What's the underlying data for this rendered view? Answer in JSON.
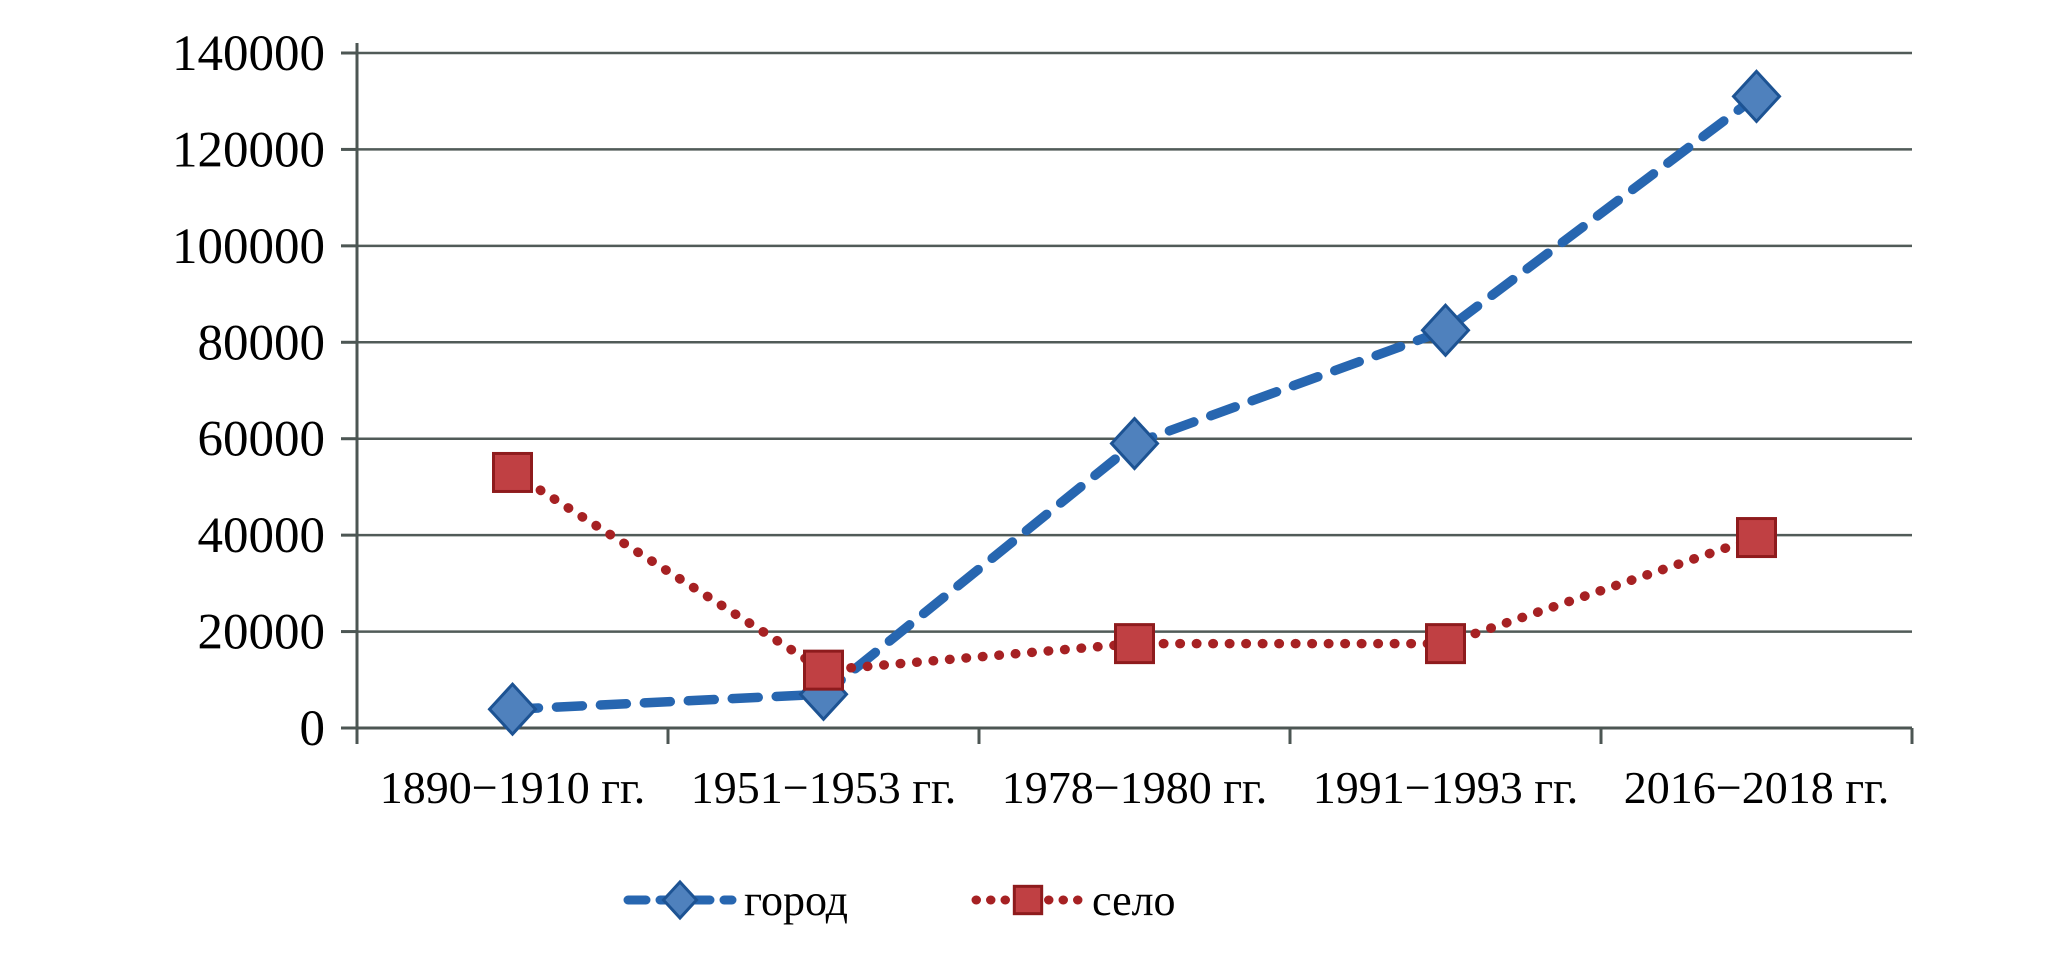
{
  "chart_data": {
    "type": "line",
    "title": "",
    "xlabel": "",
    "ylabel": "",
    "categories": [
      "1890−1910 гг.",
      "1951−1953 гг.",
      "1978−1980 гг.",
      "1991−1993 гг.",
      "2016−2018 гг."
    ],
    "ytick_labels": [
      "0",
      "20000",
      "40000",
      "60000",
      "80000",
      "100000",
      "120000",
      "140000"
    ],
    "ytick_step": 20000,
    "ylim": [
      0,
      140000
    ],
    "grid": true,
    "legend_position": "bottom",
    "colors": {
      "gridline": "#515b58",
      "axis": "#4c5653",
      "text": "#000000"
    },
    "series": [
      {
        "name": "город",
        "values": [
          3900,
          7000,
          59000,
          82500,
          131000
        ],
        "line_color": "#2766b0",
        "line_style": "dashed",
        "marker": "diamond",
        "marker_fill": "#4f81bd",
        "marker_stroke": "#1d5393"
      },
      {
        "name": "село",
        "values": [
          53000,
          12000,
          17500,
          17500,
          39500
        ],
        "line_color": "#a62123",
        "line_style": "dotted",
        "marker": "square",
        "marker_fill": "#c04043",
        "marker_stroke": "#8e1b1d"
      }
    ]
  }
}
